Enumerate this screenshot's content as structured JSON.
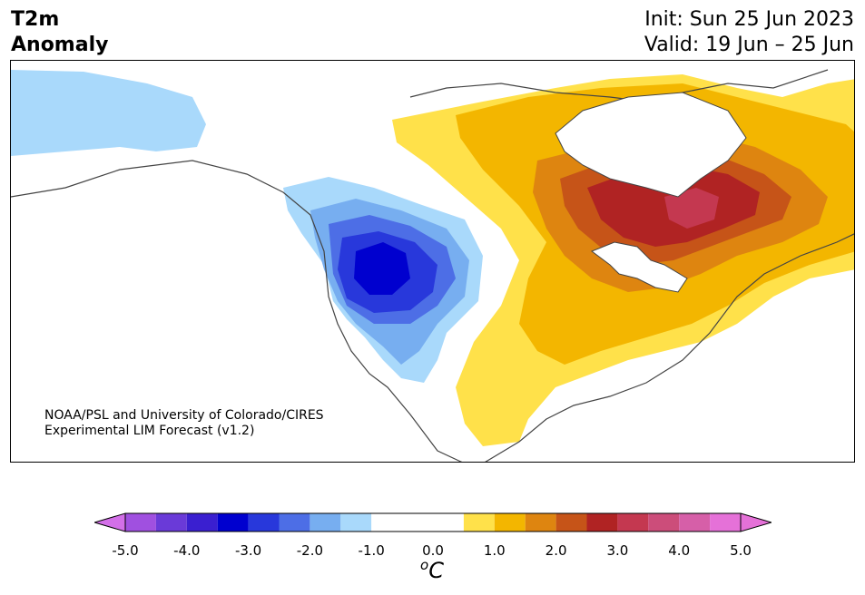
{
  "title": {
    "line1": "T2m",
    "line2": "Anomaly"
  },
  "init": {
    "line1": "Init: Sun 25 Jun 2023",
    "line2": "Valid: 19 Jun – 25 Jun"
  },
  "credit": {
    "line1": "NOAA/PSL and University of Colorado/CIRES",
    "line2": "Experimental LIM Forecast (v1.2)"
  },
  "colorbar": {
    "unit_base": "C",
    "unit_prefix": "o",
    "ticks": [
      "-5.0",
      "-4.0",
      "-3.0",
      "-2.0",
      "-1.0",
      "0.0",
      "1.0",
      "2.0",
      "3.0",
      "4.0",
      "5.0"
    ],
    "levels": [
      -5.0,
      -4.5,
      -4.0,
      -3.5,
      -3.0,
      -2.5,
      -2.0,
      -1.5,
      -1.0,
      -0.5,
      0.5,
      1.0,
      1.5,
      2.0,
      2.5,
      3.0,
      3.5,
      4.0,
      4.5,
      5.0
    ],
    "colors": [
      "#d36fe8",
      "#a050e0",
      "#6a3ad8",
      "#3a1fd0",
      "#0000cf",
      "#2838db",
      "#4d6ee6",
      "#77aef0",
      "#a9d9fb",
      "#ffffff",
      "#ffffff",
      "#ffe14a",
      "#f3b600",
      "#de8510",
      "#c65418",
      "#b02323",
      "#c43850",
      "#cc4d7a",
      "#d65fa8",
      "#e571d8",
      "#f08ee6"
    ],
    "under_color": "#d36fe8",
    "over_color": "#e571d8"
  },
  "anomaly_colors": {
    "cool_1": "#a9d9fb",
    "cool_2": "#77aef0",
    "cool_3": "#4d6ee6",
    "cool_4": "#2838db",
    "cool_5": "#0000cf",
    "warm_1": "#ffe14a",
    "warm_2": "#f3b600",
    "warm_3": "#de8510",
    "warm_4": "#c65418",
    "warm_5": "#b02323",
    "warm_6": "#c43850"
  }
}
